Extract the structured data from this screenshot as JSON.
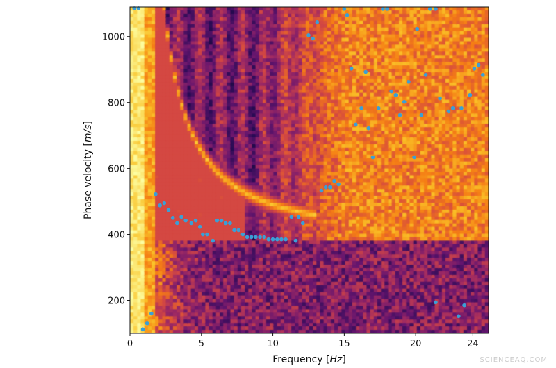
{
  "chart_data": {
    "type": "heatmap+scatter",
    "title": "",
    "xlabel_text": "Frequency ",
    "xlabel_unit": "Hz",
    "ylabel_text": "Phase velocity ",
    "ylabel_unit": "m/s",
    "xlim": [
      0,
      25.1
    ],
    "ylim": [
      100,
      1090
    ],
    "xticks": [
      0,
      5,
      10,
      15,
      20,
      24
    ],
    "yticks": [
      200,
      400,
      600,
      800,
      1000
    ],
    "colormap": "inferno",
    "marker_color": "#3b9fd6",
    "grid": false,
    "points": [
      [
        0.3,
        1086
      ],
      [
        0.6,
        1086
      ],
      [
        0.9,
        112
      ],
      [
        1.2,
        130
      ],
      [
        1.5,
        160
      ],
      [
        1.8,
        522
      ],
      [
        2.1,
        488
      ],
      [
        2.4,
        495
      ],
      [
        2.7,
        474
      ],
      [
        3.0,
        450
      ],
      [
        3.3,
        434
      ],
      [
        3.6,
        453
      ],
      [
        3.9,
        442
      ],
      [
        4.3,
        434
      ],
      [
        4.6,
        442
      ],
      [
        4.9,
        423
      ],
      [
        5.1,
        400
      ],
      [
        5.4,
        400
      ],
      [
        5.8,
        381
      ],
      [
        6.1,
        442
      ],
      [
        6.4,
        442
      ],
      [
        6.7,
        434
      ],
      [
        7.0,
        434
      ],
      [
        7.3,
        413
      ],
      [
        7.6,
        413
      ],
      [
        7.9,
        400
      ],
      [
        8.2,
        392
      ],
      [
        8.5,
        392
      ],
      [
        8.8,
        392
      ],
      [
        9.1,
        392
      ],
      [
        9.4,
        392
      ],
      [
        9.7,
        385
      ],
      [
        10.0,
        385
      ],
      [
        10.3,
        385
      ],
      [
        10.6,
        385
      ],
      [
        10.9,
        385
      ],
      [
        11.6,
        381
      ],
      [
        11.3,
        453
      ],
      [
        11.8,
        453
      ],
      [
        12.1,
        434
      ],
      [
        12.5,
        1004
      ],
      [
        12.8,
        994
      ],
      [
        13.1,
        1044
      ],
      [
        15.0,
        1084
      ],
      [
        15.2,
        1065
      ],
      [
        17.7,
        1084
      ],
      [
        18.0,
        1084
      ],
      [
        21.0,
        1084
      ],
      [
        21.4,
        1084
      ],
      [
        20.1,
        1023
      ],
      [
        15.5,
        903
      ],
      [
        16.5,
        893
      ],
      [
        19.5,
        863
      ],
      [
        20.7,
        884
      ],
      [
        24.1,
        903
      ],
      [
        24.4,
        914
      ],
      [
        24.7,
        884
      ],
      [
        18.3,
        834
      ],
      [
        18.6,
        823
      ],
      [
        19.2,
        802
      ],
      [
        21.7,
        813
      ],
      [
        23.8,
        823
      ],
      [
        16.2,
        783
      ],
      [
        17.4,
        783
      ],
      [
        18.9,
        762
      ],
      [
        20.4,
        762
      ],
      [
        22.3,
        773
      ],
      [
        22.6,
        783
      ],
      [
        23.2,
        783
      ],
      [
        15.8,
        733
      ],
      [
        16.7,
        722
      ],
      [
        17.0,
        634
      ],
      [
        19.9,
        634
      ],
      [
        14.3,
        562
      ],
      [
        14.6,
        552
      ],
      [
        13.4,
        533
      ],
      [
        13.7,
        543
      ],
      [
        14.0,
        543
      ],
      [
        21.4,
        194
      ],
      [
        23.0,
        152
      ],
      [
        23.4,
        185
      ]
    ]
  },
  "watermark": "SCIENCEAQ.COM"
}
